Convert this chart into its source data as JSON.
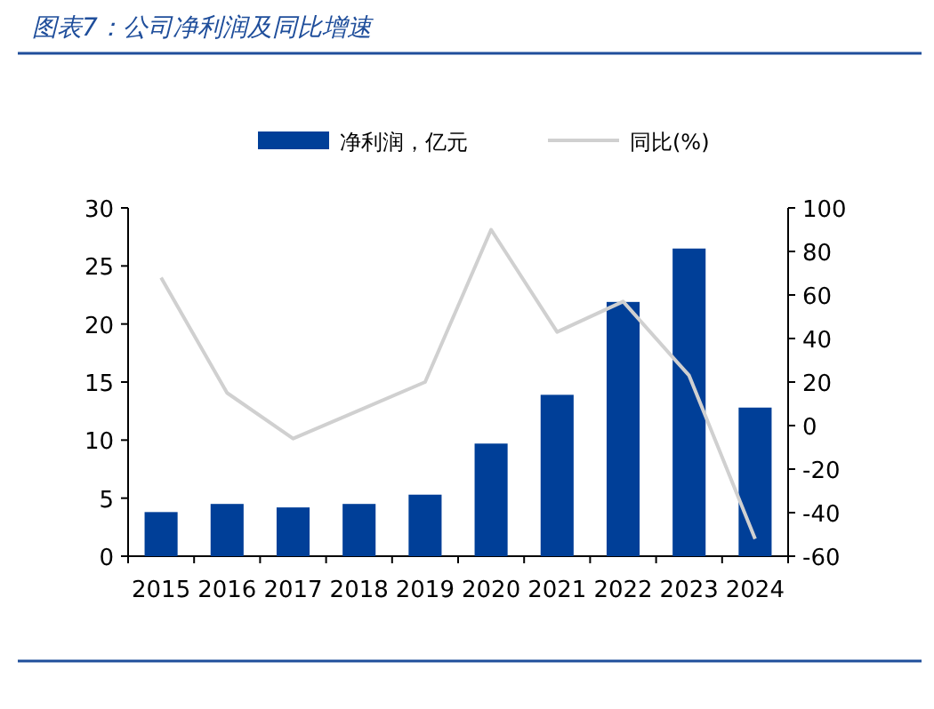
{
  "chart_data": {
    "type": "bar",
    "title": "图表7：公司净利润及同比增速",
    "categories": [
      "2015",
      "2016",
      "2017",
      "2018",
      "2019",
      "2020",
      "2021",
      "2022",
      "2023",
      "2024"
    ],
    "series": [
      {
        "name": "净利润，亿元",
        "color": "#003f98",
        "values": [
          3.8,
          4.5,
          4.2,
          4.5,
          5.3,
          9.7,
          13.9,
          21.9,
          26.5,
          12.8
        ]
      },
      {
        "name": "同比(%)",
        "type": "line",
        "axis": "y2",
        "color": "#d0d0d0",
        "values": [
          68,
          15,
          -6,
          7,
          20,
          90,
          43,
          57,
          23,
          -52
        ]
      }
    ],
    "ylim": [
      0,
      30
    ],
    "yticks": [
      0,
      5,
      10,
      15,
      20,
      25,
      30
    ],
    "y2lim": [
      -60,
      100
    ],
    "y2ticks": [
      -60,
      -40,
      -20,
      0,
      20,
      40,
      60,
      80,
      100
    ],
    "legend": "top",
    "grid": false,
    "marker": "none",
    "line_style": "solid"
  }
}
